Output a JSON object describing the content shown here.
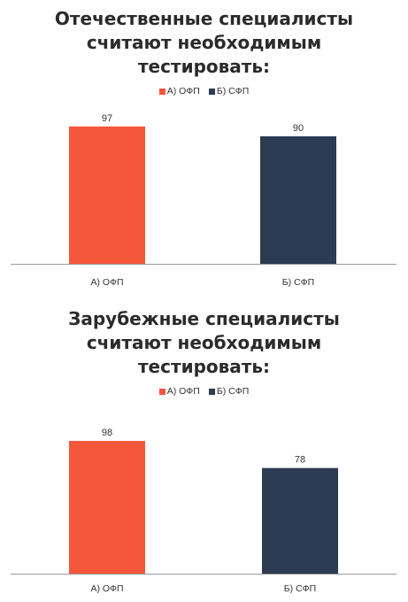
{
  "chart_data": [
    {
      "type": "bar",
      "title_lines": [
        "Отечественные специалисты",
        "считают необходимым",
        "тестировать:"
      ],
      "categories": [
        "А) ОФП",
        "Б) СФП"
      ],
      "values": [
        97,
        90
      ],
      "colors": [
        "#f4573a",
        "#2c3a52"
      ],
      "legend": [
        "А) ОФП",
        "Б) СФП"
      ],
      "legend_position": "top",
      "ylim": [
        0,
        100
      ],
      "grid": false
    },
    {
      "type": "bar",
      "title_lines": [
        "Зарубежные специалисты",
        "считают необходимым",
        "тестировать:"
      ],
      "categories": [
        "А) ОФП",
        "Б) СФП"
      ],
      "values": [
        98,
        78
      ],
      "colors": [
        "#f4573a",
        "#2c3a52"
      ],
      "legend": [
        "А) ОФП",
        "Б) СФП"
      ],
      "legend_position": "top",
      "ylim": [
        0,
        100
      ],
      "grid": false
    }
  ]
}
